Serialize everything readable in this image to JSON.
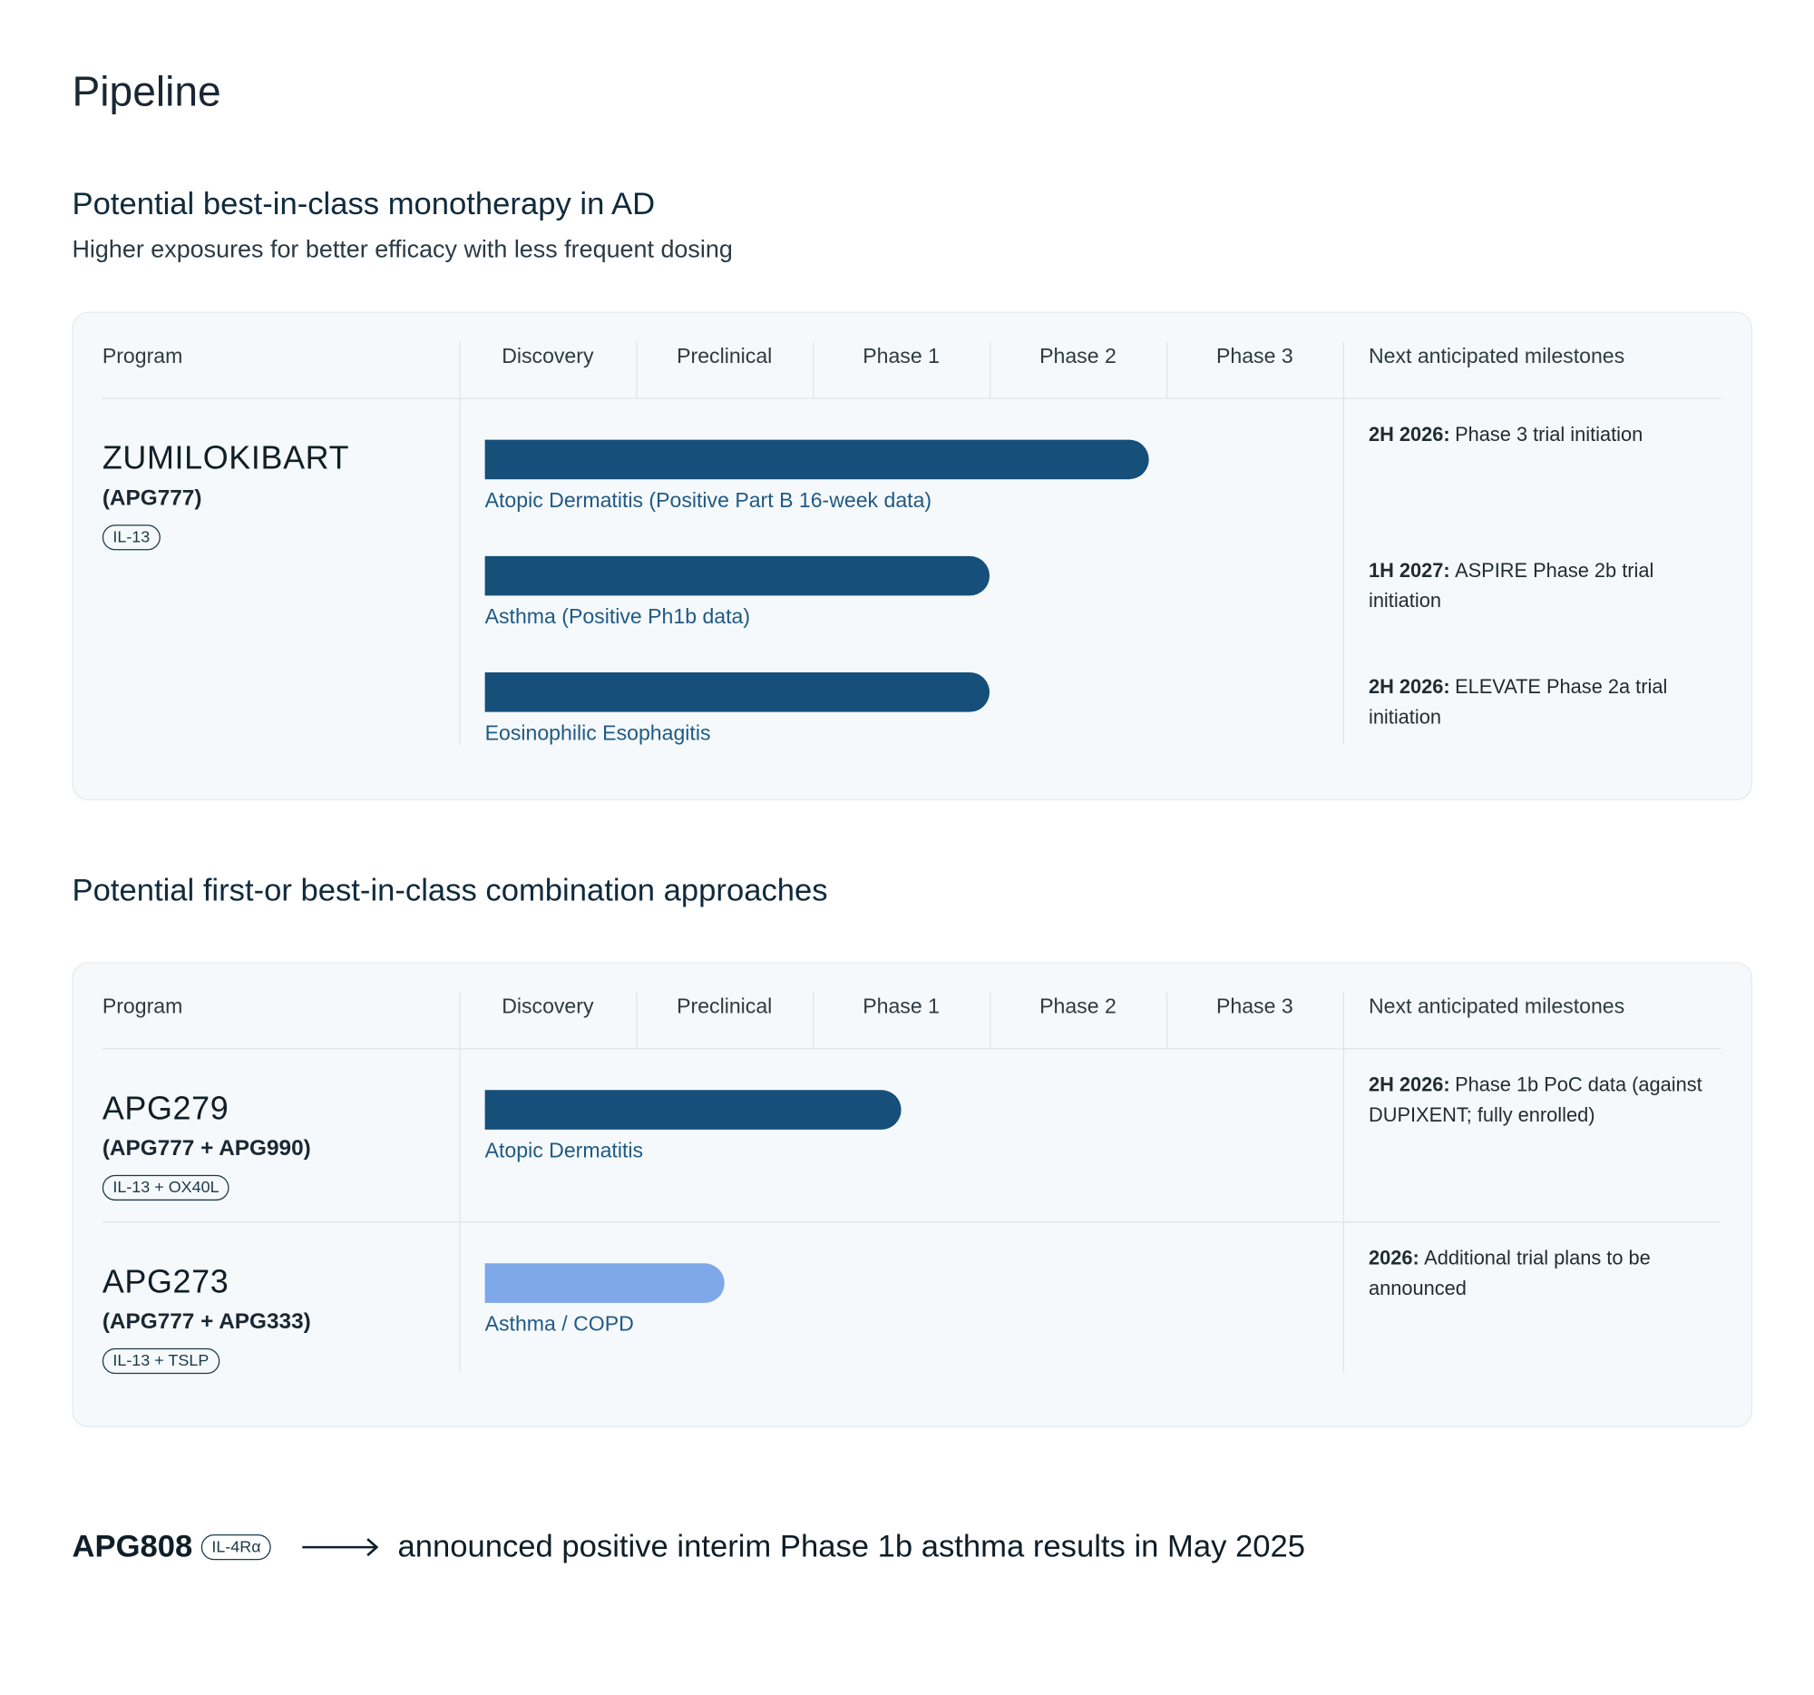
{
  "title": "Pipeline",
  "sections": [
    {
      "heading": "Potential best-in-class monotherapy in AD",
      "subheading": "Higher exposures for better efficacy with less frequent dosing",
      "columns": [
        "Program",
        "Discovery",
        "Preclinical",
        "Phase 1",
        "Phase 2",
        "Phase 3",
        "Next anticipated milestones"
      ],
      "programs": [
        {
          "name": "ZUMILOKIBART",
          "code": "(APG777)",
          "target": "IL-13",
          "indications": [
            {
              "label": "Atopic Dermatitis (Positive Part B 16-week data)",
              "progress": 3.9,
              "color": "#154f7a"
            },
            {
              "label": "Asthma (Positive Ph1b data)",
              "progress": 3,
              "color": "#154f7a"
            },
            {
              "label": "Eosinophilic Esophagitis",
              "progress": 3,
              "color": "#154f7a"
            }
          ],
          "milestones": [
            {
              "when": "2H 2026:",
              "text": "Phase 3 trial initiation"
            },
            {
              "when": "1H 2027:",
              "text": "ASPIRE Phase 2b trial initiation"
            },
            {
              "when": "2H 2026:",
              "text": "ELEVATE Phase 2a trial initiation"
            }
          ]
        }
      ]
    },
    {
      "heading": "Potential first-or best-in-class combination approaches",
      "columns": [
        "Program",
        "Discovery",
        "Preclinical",
        "Phase 1",
        "Phase 2",
        "Phase 3",
        "Next anticipated milestones"
      ],
      "programs": [
        {
          "name": "APG279",
          "code": "(APG777 + APG990)",
          "target": "IL-13 + OX40L",
          "indications": [
            {
              "label": "Atopic Dermatitis",
              "progress": 2.5,
              "color": "#154f7a"
            }
          ],
          "milestones": [
            {
              "when": "2H 2026:",
              "text": "Phase 1b PoC data (against DUPIXENT; fully enrolled)"
            }
          ]
        },
        {
          "name": "APG273",
          "code": "(APG777 + APG333)",
          "target": "IL-13 + TSLP",
          "indications": [
            {
              "label": "Asthma / COPD",
              "progress": 1.5,
              "color": "#7ea8e8"
            }
          ],
          "milestones": [
            {
              "when": "2026:",
              "text": "Additional trial plans to be announced"
            }
          ]
        }
      ]
    }
  ],
  "footer": {
    "program": "APG808",
    "target": "IL-4Rα",
    "text": "announced positive interim Phase 1b asthma results in May 2025"
  }
}
